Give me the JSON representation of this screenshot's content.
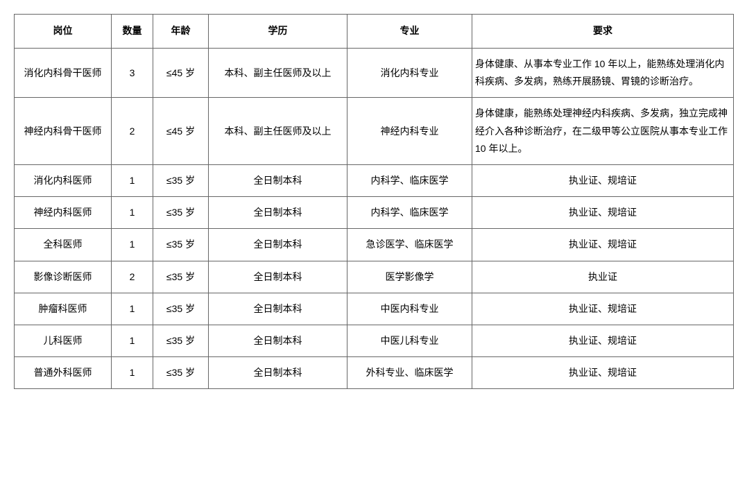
{
  "table": {
    "columns": [
      "岗位",
      "数量",
      "年龄",
      "学历",
      "专业",
      "要求"
    ],
    "rows": [
      {
        "position": "消化内科骨干医师",
        "qty": "3",
        "age": "≤45 岁",
        "edu": "本科、副主任医师及以上",
        "major": "消化内科专业",
        "req": "身体健康、从事本专业工作 10 年以上，能熟练处理消化内科疾病、多发病，熟练开展肠镜、胃镜的诊断治疗。"
      },
      {
        "position": "神经内科骨干医师",
        "qty": "2",
        "age": "≤45 岁",
        "edu": "本科、副主任医师及以上",
        "major": "神经内科专业",
        "req": "身体健康，能熟练处理神经内科疾病、多发病，独立完成神经介入各种诊断治疗，在二级甲等公立医院从事本专业工作 10 年以上。"
      },
      {
        "position": "消化内科医师",
        "qty": "1",
        "age": "≤35 岁",
        "edu": "全日制本科",
        "major": "内科学、临床医学",
        "req": "执业证、规培证"
      },
      {
        "position": "神经内科医师",
        "qty": "1",
        "age": "≤35 岁",
        "edu": "全日制本科",
        "major": "内科学、临床医学",
        "req": "执业证、规培证"
      },
      {
        "position": "全科医师",
        "qty": "1",
        "age": "≤35 岁",
        "edu": "全日制本科",
        "major": "急诊医学、临床医学",
        "req": "执业证、规培证"
      },
      {
        "position": "影像诊断医师",
        "qty": "2",
        "age": "≤35 岁",
        "edu": "全日制本科",
        "major": "医学影像学",
        "req": "执业证"
      },
      {
        "position": "肿瘤科医师",
        "qty": "1",
        "age": "≤35 岁",
        "edu": "全日制本科",
        "major": "中医内科专业",
        "req": "执业证、规培证"
      },
      {
        "position": "儿科医师",
        "qty": "1",
        "age": "≤35 岁",
        "edu": "全日制本科",
        "major": "中医儿科专业",
        "req": "执业证、规培证"
      },
      {
        "position": "普通外科医师",
        "qty": "1",
        "age": "≤35 岁",
        "edu": "全日制本科",
        "major": "外科专业、临床医学",
        "req": "执业证、规培证"
      }
    ],
    "req_left_align_indices": [
      0,
      1
    ],
    "border_color": "#666666",
    "background_color": "#ffffff",
    "text_color": "#000000",
    "header_fontsize": 14,
    "cell_fontsize": 14
  }
}
